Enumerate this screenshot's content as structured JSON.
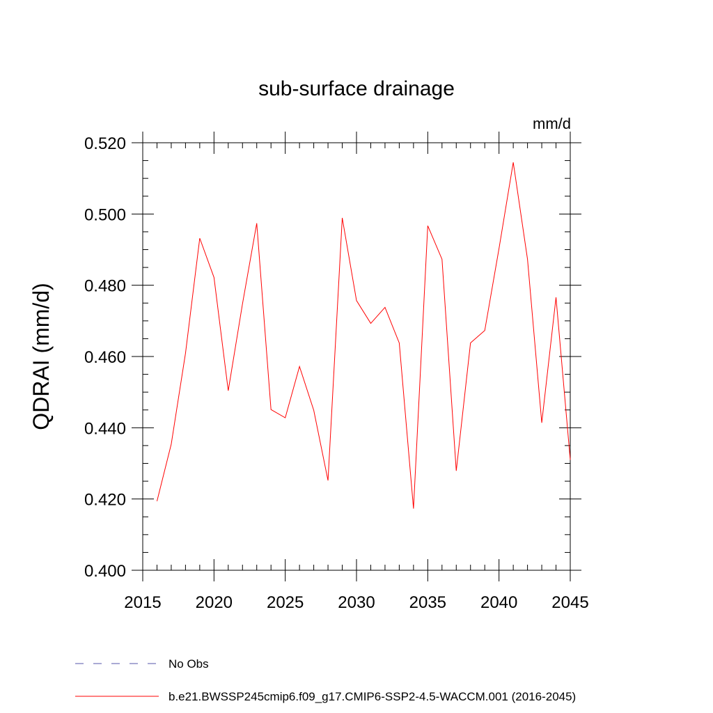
{
  "chart_data": {
    "type": "line",
    "title": "sub-surface drainage",
    "units": "mm/d",
    "ylabel": "QDRAI  (mm/d)",
    "xlabel": "",
    "xlim": [
      2015,
      2045
    ],
    "ylim": [
      0.4,
      0.52
    ],
    "x_ticks": [
      2015,
      2020,
      2025,
      2030,
      2035,
      2040,
      2045
    ],
    "x_tick_labels": [
      "2015",
      "2020",
      "2025",
      "2030",
      "2035",
      "2040",
      "2045"
    ],
    "y_ticks": [
      0.4,
      0.42,
      0.44,
      0.46,
      0.48,
      0.5,
      0.52
    ],
    "y_tick_labels": [
      "0.400",
      "0.420",
      "0.440",
      "0.460",
      "0.480",
      "0.500",
      "0.520"
    ],
    "grid": false,
    "legend_position": "bottom",
    "series": [
      {
        "name": "b.e21.BWSSP245cmip6.f09_g17.CMIP6-SSP2-4.5-WACCM.001 (2016-2045)",
        "color": "#ff0000",
        "style": "solid",
        "x": [
          2016,
          2017,
          2018,
          2019,
          2020,
          2021,
          2022,
          2023,
          2024,
          2025,
          2026,
          2027,
          2028,
          2029,
          2030,
          2031,
          2032,
          2033,
          2034,
          2035,
          2036,
          2037,
          2038,
          2039,
          2040,
          2041,
          2042,
          2043,
          2044,
          2045
        ],
        "values": [
          0.4194,
          0.4354,
          0.4609,
          0.4932,
          0.4822,
          0.4504,
          0.4748,
          0.4974,
          0.4451,
          0.4428,
          0.4572,
          0.4449,
          0.4252,
          0.4989,
          0.4757,
          0.4693,
          0.4738,
          0.4638,
          0.4173,
          0.4967,
          0.4873,
          0.4279,
          0.4638,
          0.4673,
          0.4903,
          0.5145,
          0.4873,
          0.4414,
          0.4766,
          0.431
        ]
      }
    ],
    "legend": [
      {
        "label": "No Obs",
        "color": "#5555aa",
        "style": "dashed"
      },
      {
        "label": "b.e21.BWSSP245cmip6.f09_g17.CMIP6-SSP2-4.5-WACCM.001 (2016-2045)",
        "color": "#ff0000",
        "style": "solid"
      }
    ]
  }
}
